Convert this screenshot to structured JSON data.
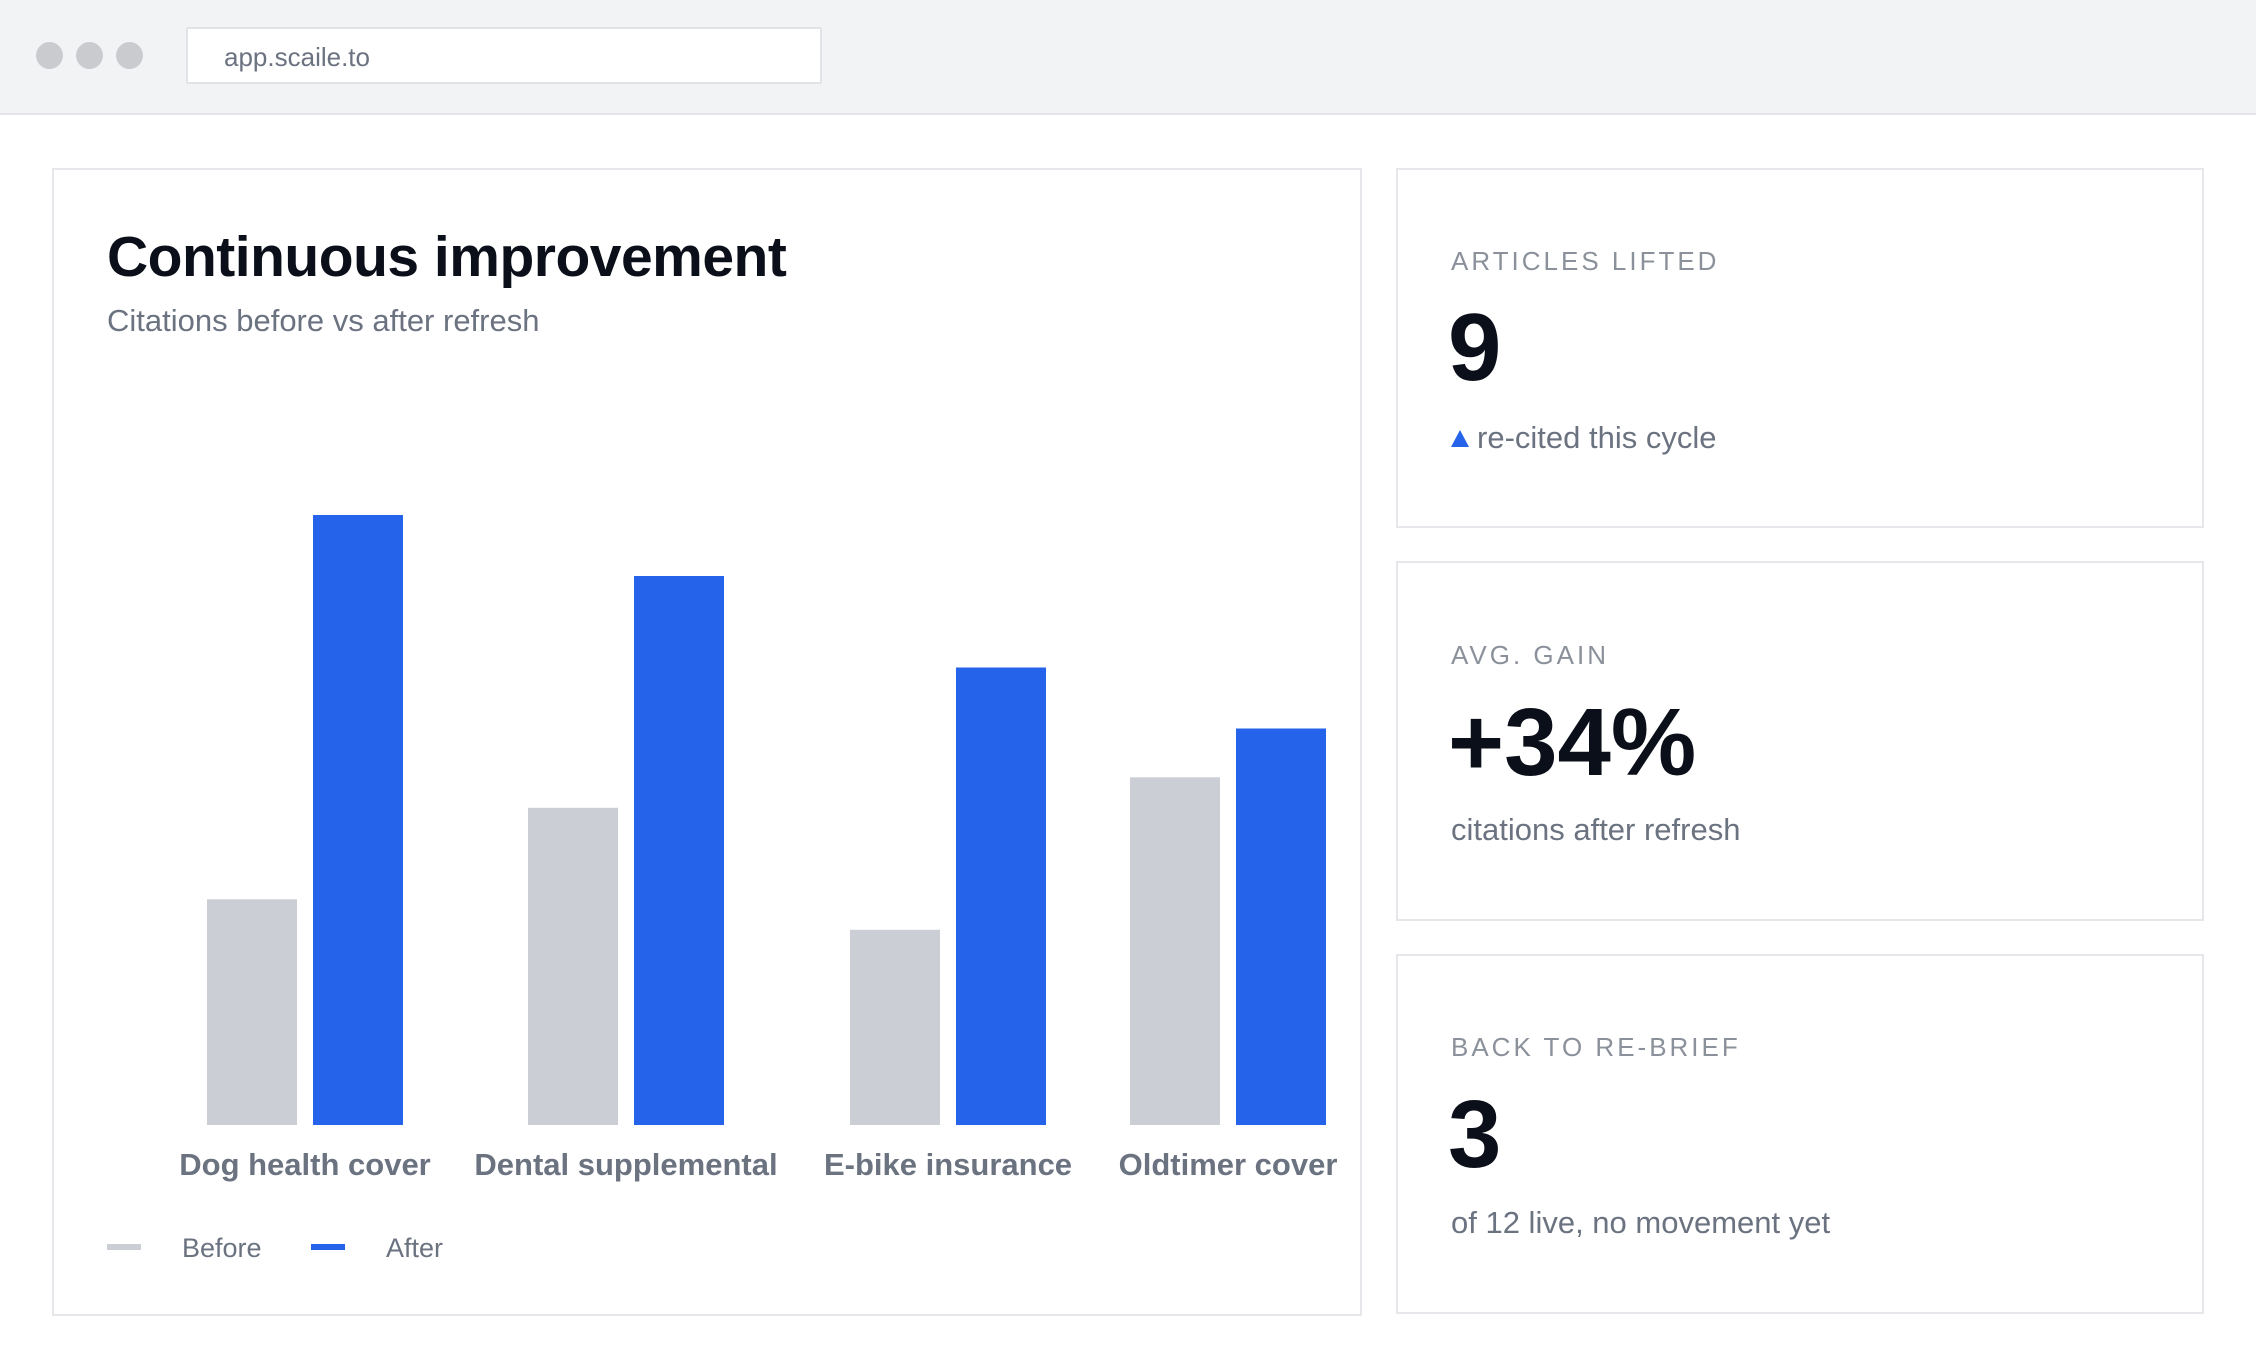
{
  "browser": {
    "url": "app.scaile.to",
    "window_controls": [
      "close",
      "minimize",
      "maximize"
    ]
  },
  "chart_card": {
    "title": "Continuous improvement",
    "subtitle": "Citations before vs after refresh"
  },
  "chart_data": {
    "type": "bar",
    "title": "Continuous improvement",
    "subtitle": "Citations before vs after refresh",
    "categories": [
      "Dog health cover",
      "Dental supplemental",
      "E-bike insurance",
      "Oldtimer cover"
    ],
    "series": [
      {
        "name": "Before",
        "color": "#cbced4",
        "values": [
          37,
          52,
          32,
          57
        ]
      },
      {
        "name": "After",
        "color": "#2563eb",
        "values": [
          100,
          90,
          75,
          65
        ]
      }
    ],
    "ylim": [
      0,
      100
    ],
    "grid": false,
    "legend": "bottom-left",
    "xlabel": "",
    "ylabel": ""
  },
  "stats": [
    {
      "label": "ARTICLES LIFTED",
      "value": "9",
      "note": "re-cited this cycle",
      "trend": "up",
      "accent": "#2563eb"
    },
    {
      "label": "AVG. GAIN",
      "value": "+34%",
      "note": "citations after refresh"
    },
    {
      "label": "BACK TO RE-BRIEF",
      "value": "3",
      "note": "of 12 live, no movement yet"
    }
  ]
}
